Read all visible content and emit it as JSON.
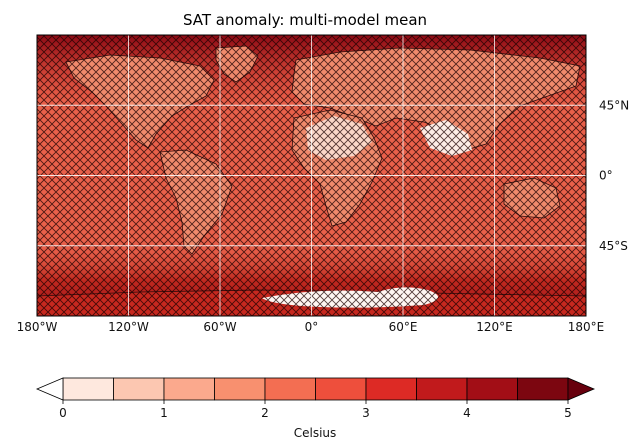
{
  "title": "SAT anomaly: multi-model mean",
  "longitude_labels": [
    "180°W",
    "120°W",
    "60°W",
    "0°",
    "60°E",
    "120°E",
    "180°E"
  ],
  "latitude_labels": [
    "45°N",
    "0°",
    "45°S"
  ],
  "colorbar": {
    "label": "Celsius",
    "ticks": [
      "0",
      "1",
      "2",
      "3",
      "4",
      "5"
    ],
    "levels": [
      0,
      0.5,
      1,
      1.5,
      2,
      2.5,
      3,
      3.5,
      4,
      4.5,
      5
    ],
    "colors": [
      "#fee8de",
      "#fcc7b1",
      "#fba98d",
      "#f8906f",
      "#f36e52",
      "#ee4f3c",
      "#dd2a25",
      "#c11a1c",
      "#a20e16",
      "#7c0610"
    ],
    "under_color": "#ffffff",
    "over_color": "#67000d"
  },
  "map": {
    "projection": "cylindrical",
    "lon_range": [
      -180,
      180
    ],
    "lat_range": [
      -90,
      90
    ],
    "gridlines": true,
    "hatching": "crosshatch over most of the globe",
    "ocean_color": "#e9604a",
    "land_color": "#f08a6c"
  }
}
